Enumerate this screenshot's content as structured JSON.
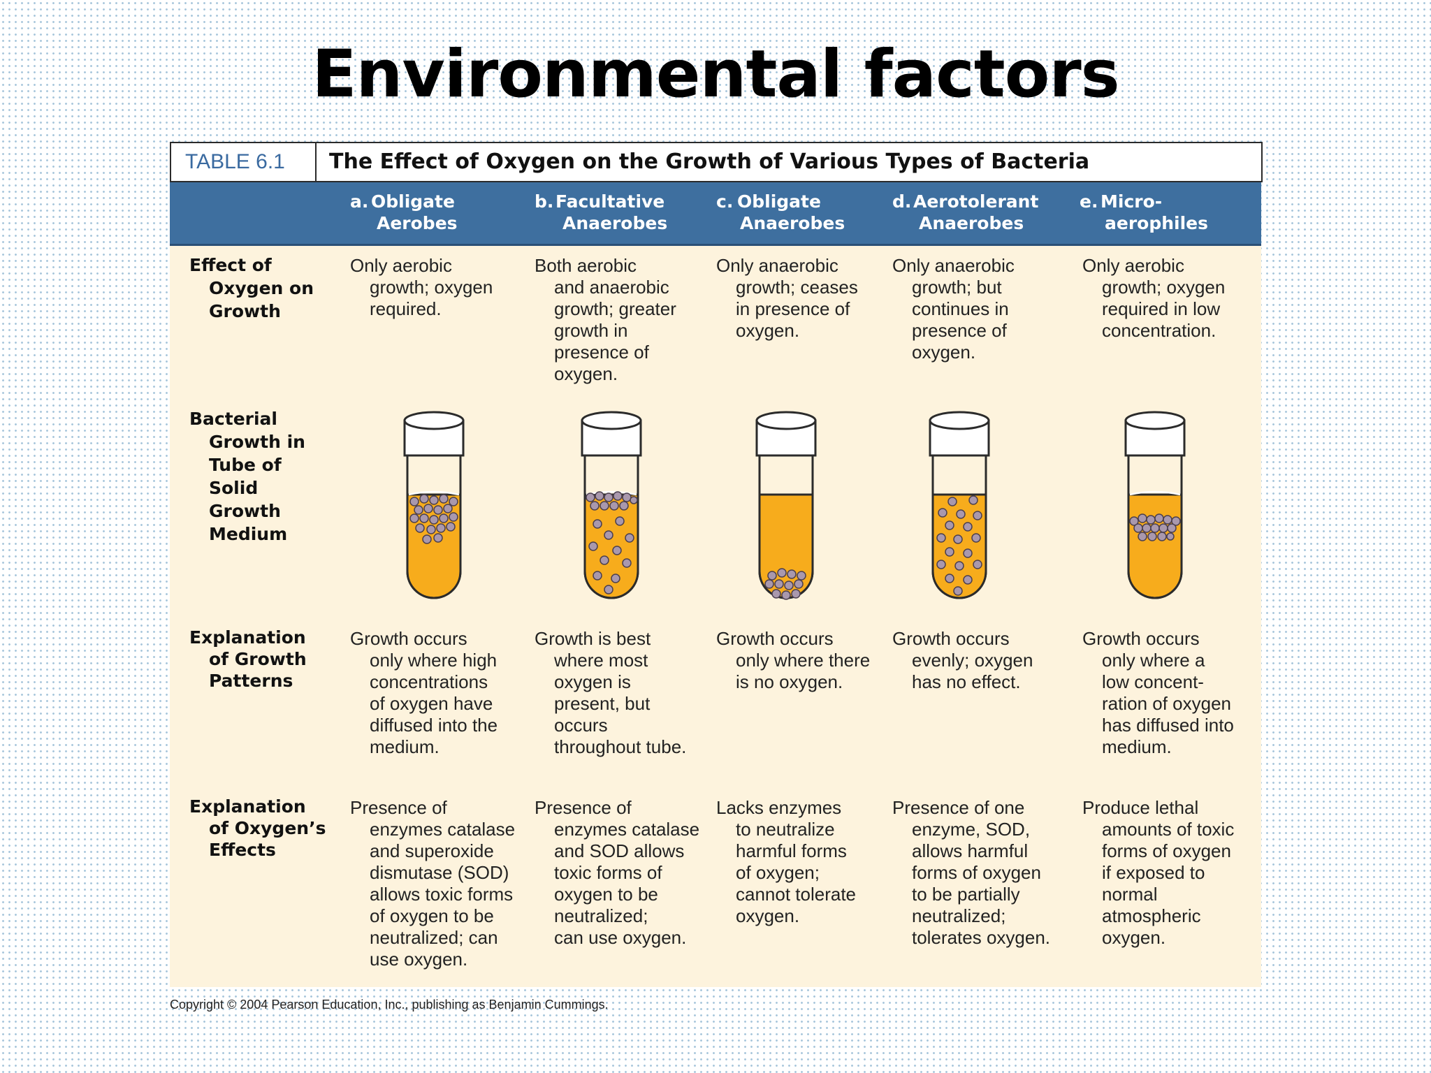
{
  "slide_title": "Environmental factors",
  "table": {
    "number": "TABLE 6.1",
    "title": "The Effect of Oxygen on the Growth of Various Types of Bacteria",
    "columns": [
      {
        "letter": "a.",
        "line1": "Obligate",
        "line2": "Aerobes"
      },
      {
        "letter": "b.",
        "line1": "Facultative",
        "line2": "Anaerobes"
      },
      {
        "letter": "c.",
        "line1": "Obligate",
        "line2": "Anaerobes"
      },
      {
        "letter": "d.",
        "line1": "Aerotolerant",
        "line2": "Anaerobes"
      },
      {
        "letter": "e.",
        "line1": "Micro-",
        "line2": "aerophiles"
      }
    ],
    "rows": [
      {
        "label": [
          "Effect of",
          "Oxygen on",
          "Growth"
        ],
        "cells": [
          [
            "Only aerobic",
            "growth; oxygen",
            "required."
          ],
          [
            "Both aerobic",
            "and anaerobic",
            "growth; greater",
            "growth in",
            "presence of",
            "oxygen."
          ],
          [
            "Only anaerobic",
            "growth; ceases",
            "in presence of",
            "oxygen."
          ],
          [
            "Only anaerobic",
            "growth; but",
            "continues in",
            "presence of",
            "oxygen."
          ],
          [
            "Only aerobic",
            "growth; oxygen",
            "required in low",
            "concentration."
          ]
        ]
      },
      {
        "label": [
          "Bacterial",
          "Growth in",
          "Tube of Solid",
          "Growth",
          "Medium"
        ],
        "cells": []
      },
      {
        "label": [
          "Explanation",
          "of Growth",
          "Patterns"
        ],
        "cells": [
          [
            "Growth occurs",
            "only where high",
            "concentrations",
            "of oxygen have",
            "diffused into the",
            "medium."
          ],
          [
            "Growth is best",
            "where most",
            "oxygen is",
            "present, but",
            "occurs",
            "throughout tube."
          ],
          [
            "Growth occurs",
            "only where there",
            "is no oxygen."
          ],
          [
            "Growth occurs",
            "evenly; oxygen",
            "has no effect."
          ],
          [
            "Growth occurs",
            "only where a",
            "low concent-",
            "ration of oxygen",
            "has diffused into",
            "medium."
          ]
        ]
      },
      {
        "label": [
          "Explanation",
          "of Oxygen’s",
          "Effects"
        ],
        "cells": [
          [
            "Presence of",
            "enzymes catalase",
            "and superoxide",
            "dismutase (SOD)",
            "allows toxic forms",
            "of oxygen to be",
            "neutralized; can",
            "use oxygen."
          ],
          [
            "Presence of",
            "enzymes catalase",
            "and SOD allows",
            "toxic forms of",
            "oxygen to be",
            "neutralized;",
            "can use oxygen."
          ],
          [
            "Lacks enzymes",
            "to neutralize",
            "harmful forms",
            "of oxygen;",
            "cannot tolerate",
            "oxygen."
          ],
          [
            "Presence of one",
            "enzyme, SOD,",
            "allows harmful",
            "forms of oxygen",
            "to be partially",
            "neutralized;",
            "tolerates oxygen."
          ],
          [
            "Produce lethal",
            "amounts of toxic",
            "forms of oxygen",
            "if exposed to",
            "normal",
            "atmospheric",
            "oxygen."
          ]
        ]
      }
    ]
  },
  "copyright": "Copyright © 2004 Pearson Education, Inc., publishing as Benjamin Cummings.",
  "colors": {
    "header_blue": "#3e6f9f",
    "table_background": "#fdf3dd",
    "medium_orange": "#f7ac1c",
    "bacteria_purple": "#a998ad"
  }
}
